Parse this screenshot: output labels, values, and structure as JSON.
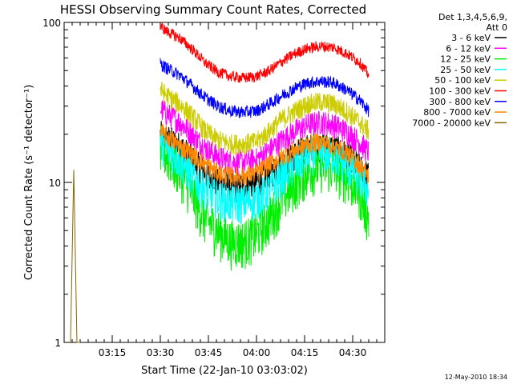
{
  "chart_data": {
    "type": "line",
    "title": "HESSI Observing Summary Count Rates, Corrected",
    "xlabel": "Start Time (22-Jan-10 03:03:02)",
    "ylabel": "Corrected Count Rate (s⁻¹ detector⁻¹)",
    "yscale": "log",
    "ylim": [
      1,
      100
    ],
    "xlim_minutes_after_start": [
      0,
      100
    ],
    "x_ticks": [
      "03:15",
      "03:30",
      "03:45",
      "04:00",
      "04:15",
      "04:30"
    ],
    "x_tick_minutes": [
      15,
      30,
      45,
      60,
      75,
      90
    ],
    "y_ticks": [
      "1",
      "10",
      "100"
    ],
    "y_tick_values": [
      1,
      10,
      100
    ],
    "legend_title": [
      "Det 1,3,4,5,6,9,",
      "Att 0"
    ],
    "legend_position": "right",
    "timestamp": "12-May-2010 18:34",
    "series": [
      {
        "name": "3 - 6 keV",
        "color": "#000000",
        "x": [
          30,
          32,
          36,
          40,
          44,
          48,
          52,
          56,
          60,
          64,
          68,
          72,
          76,
          80,
          84,
          88,
          92,
          95
        ],
        "y": [
          20,
          19,
          17,
          14,
          11.5,
          10,
          9.5,
          9.5,
          10,
          11.5,
          13,
          15,
          16.5,
          17,
          16.5,
          15,
          12.5,
          11
        ]
      },
      {
        "name": "6 - 12 keV",
        "color": "#ff00ff",
        "x": [
          30,
          32,
          36,
          40,
          44,
          48,
          52,
          56,
          60,
          64,
          68,
          72,
          76,
          80,
          84,
          88,
          92,
          95
        ],
        "y": [
          29,
          27,
          24,
          20,
          16.5,
          14.5,
          13.5,
          13.5,
          14,
          16,
          18.5,
          21,
          23,
          24,
          23,
          21,
          18,
          15.5
        ]
      },
      {
        "name": "12 - 25 keV",
        "color": "#00ee00",
        "x": [
          30,
          32,
          36,
          40,
          44,
          48,
          52,
          56,
          60,
          64,
          68,
          72,
          76,
          80,
          84,
          88,
          92,
          95
        ],
        "y": [
          17,
          15,
          12,
          8.5,
          6,
          5,
          4.3,
          4.3,
          4.8,
          6,
          8,
          10,
          12,
          13,
          12.5,
          11,
          9,
          6
        ]
      },
      {
        "name": "25 - 50 keV",
        "color": "#00ffff",
        "x": [
          30,
          32,
          36,
          40,
          44,
          48,
          52,
          56,
          60,
          64,
          68,
          72,
          76,
          80,
          84,
          88,
          92,
          95
        ],
        "y": [
          18,
          16.5,
          14,
          11,
          9,
          8,
          7.5,
          7.5,
          8,
          9,
          11,
          13,
          15,
          15.5,
          15,
          13,
          11,
          9
        ]
      },
      {
        "name": "50 - 100 keV",
        "color": "#cccc00",
        "x": [
          30,
          32,
          36,
          40,
          44,
          48,
          52,
          56,
          60,
          64,
          68,
          72,
          76,
          80,
          84,
          88,
          92,
          95
        ],
        "y": [
          38,
          35,
          31,
          26,
          21,
          18.5,
          17.5,
          17.5,
          18,
          21,
          25,
          28,
          31,
          32,
          31,
          28,
          24,
          21
        ]
      },
      {
        "name": "100 - 300 keV",
        "color": "#ff0000",
        "x": [
          30,
          32,
          36,
          40,
          44,
          48,
          52,
          56,
          60,
          64,
          68,
          72,
          76,
          80,
          84,
          88,
          92,
          95
        ],
        "y": [
          95,
          88,
          80,
          68,
          56,
          49,
          46,
          45,
          46,
          50,
          57,
          64,
          69,
          71,
          70,
          64,
          57,
          47
        ]
      },
      {
        "name": "300 - 800 keV",
        "color": "#0000ff",
        "x": [
          30,
          32,
          36,
          40,
          44,
          48,
          52,
          56,
          60,
          64,
          68,
          72,
          76,
          80,
          84,
          88,
          92,
          95
        ],
        "y": [
          55,
          52,
          47,
          40,
          34,
          30,
          28,
          27.5,
          28,
          31,
          35,
          39,
          42,
          43,
          42,
          38,
          33,
          28
        ]
      },
      {
        "name": "800 - 7000 keV",
        "color": "#ff8800",
        "x": [
          30,
          32,
          36,
          40,
          44,
          48,
          52,
          56,
          60,
          64,
          68,
          72,
          76,
          80,
          84,
          88,
          92,
          95
        ],
        "y": [
          21,
          19.5,
          17,
          15,
          13,
          11.5,
          11,
          11,
          11.5,
          13,
          14.5,
          16,
          17.5,
          18,
          17,
          15.5,
          13,
          11
        ]
      },
      {
        "name": "7000 - 20000 keV",
        "color": "#886600",
        "x": [
          2,
          3,
          4,
          5
        ],
        "y": [
          1,
          12,
          1,
          1
        ]
      }
    ]
  }
}
